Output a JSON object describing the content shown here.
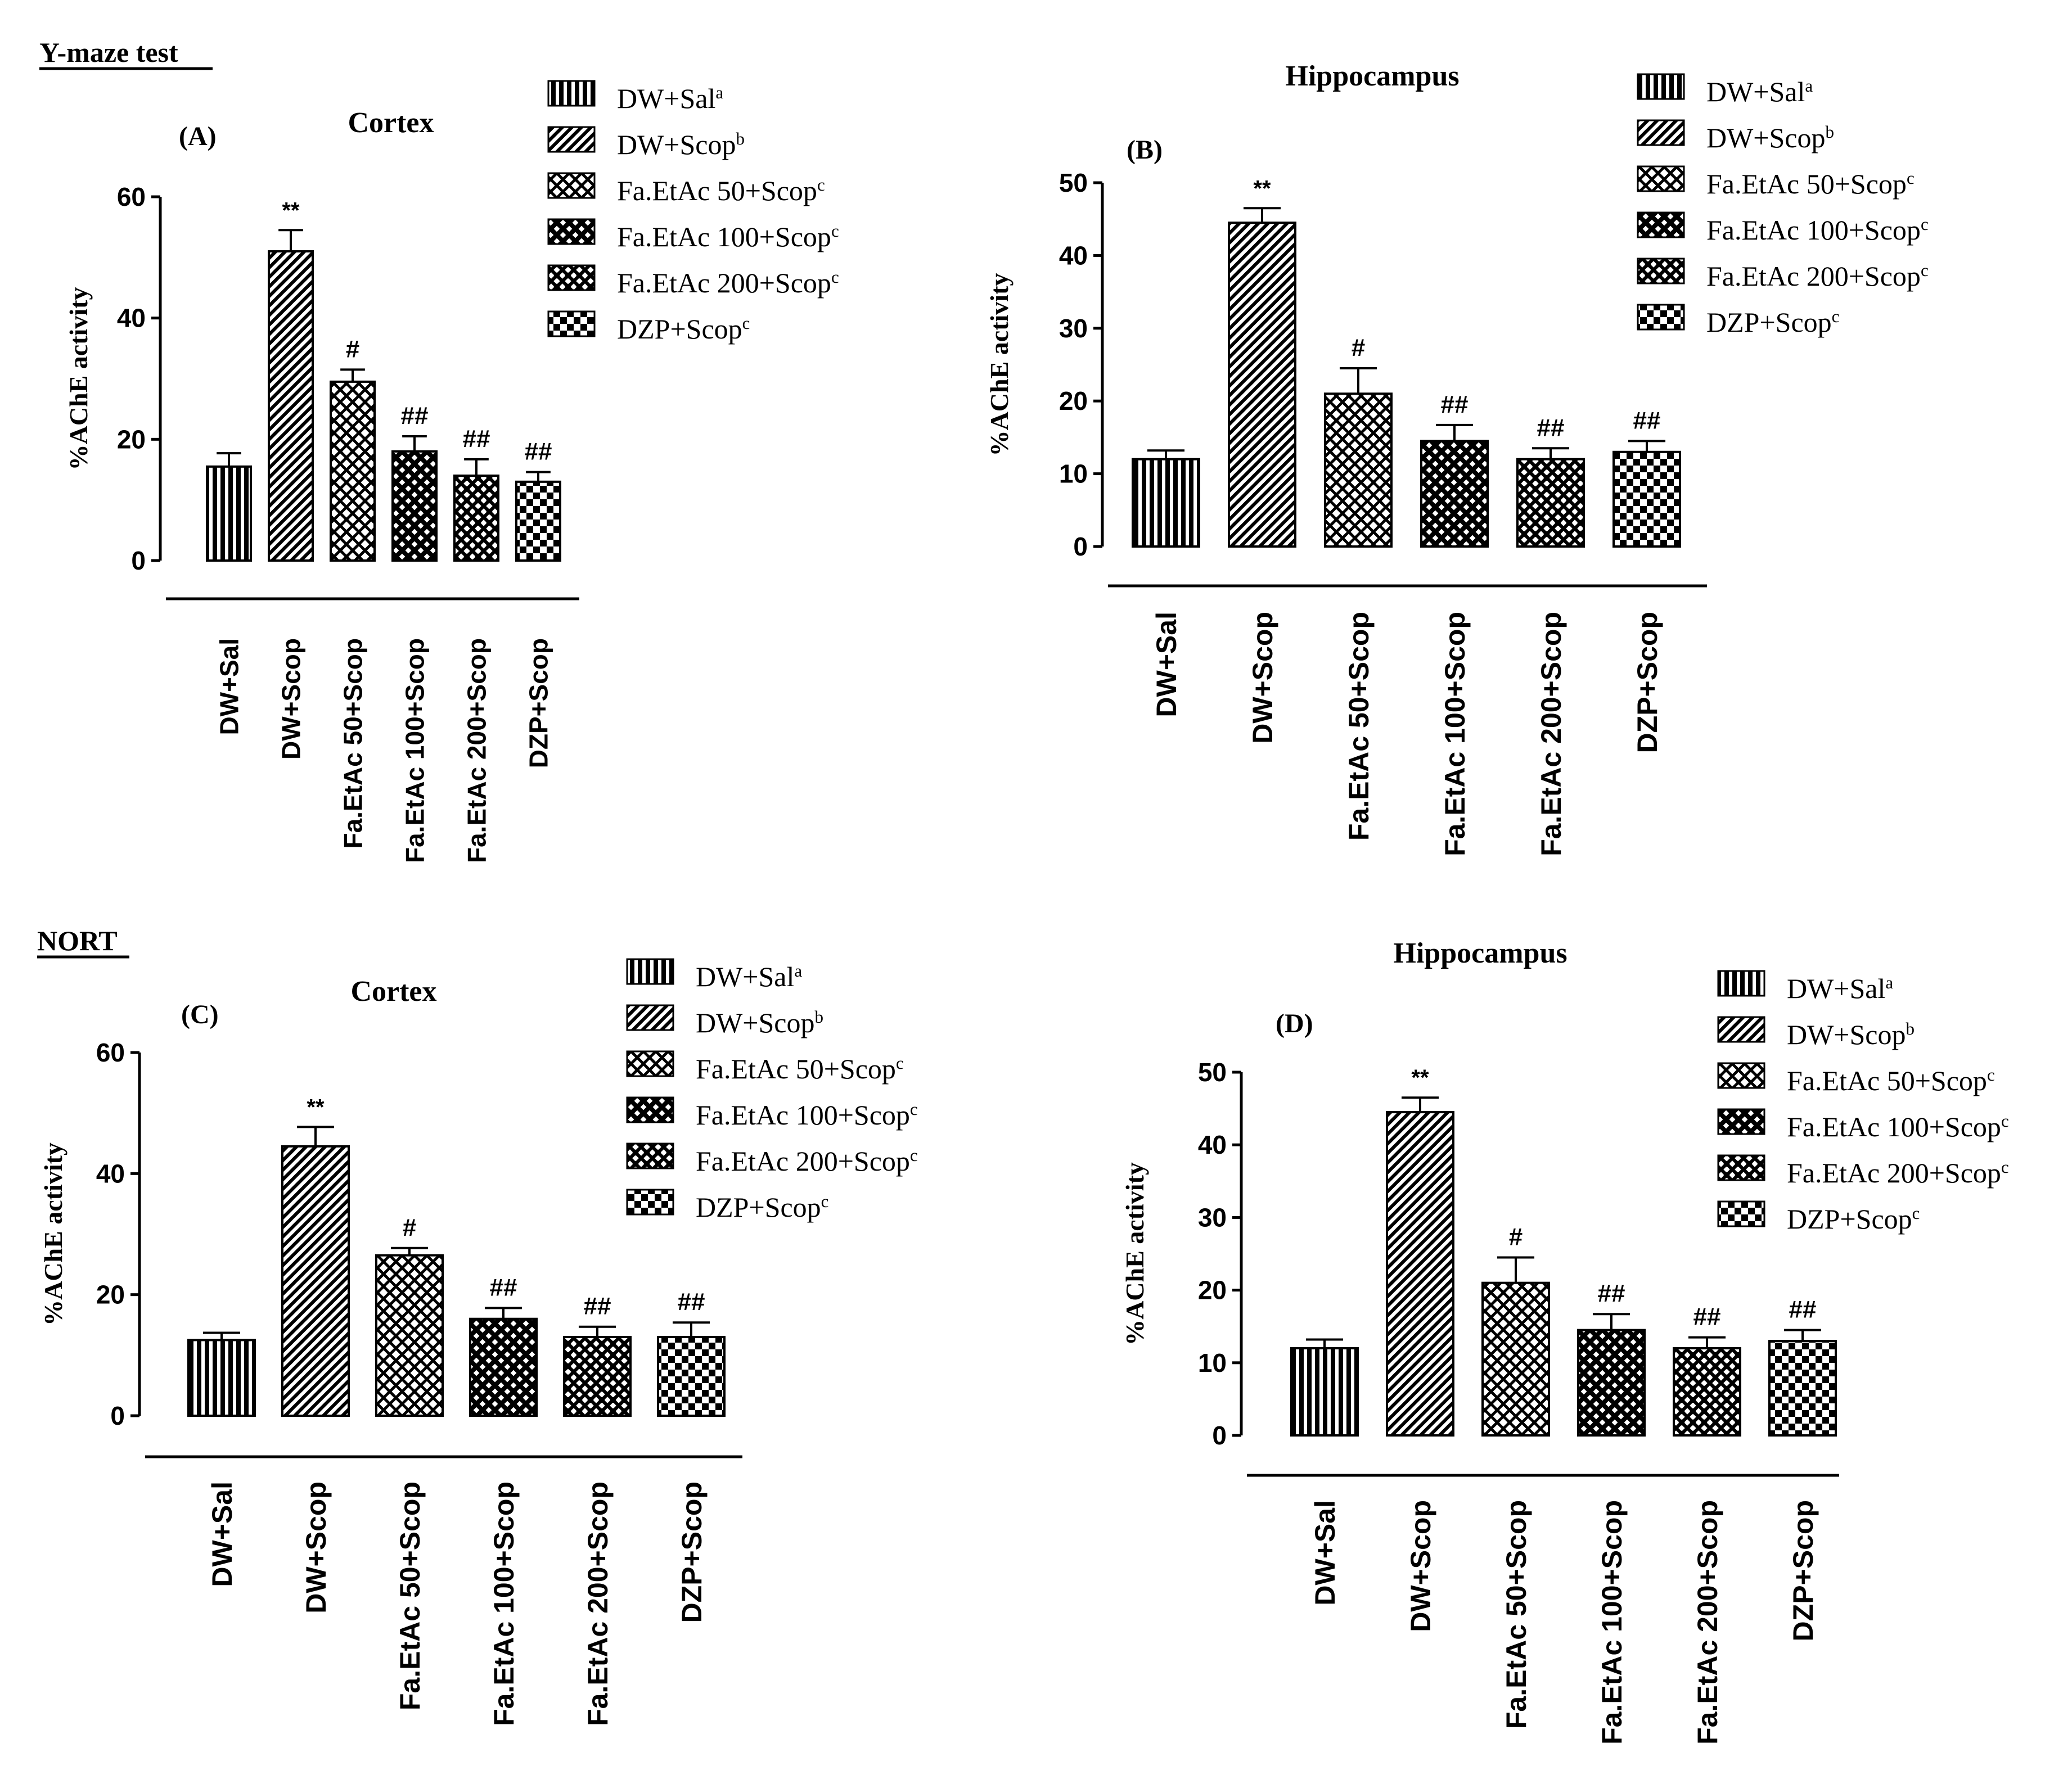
{
  "section_labels": {
    "ymaze": "Y-maze test",
    "nort": "NORT"
  },
  "colors": {
    "ink": "#000000",
    "bar_fill": "#ffffff",
    "background": "#ffffff"
  },
  "chart_data": [
    {
      "type": "bar",
      "panel": "(A)",
      "title": "Cortex",
      "ylabel": "%AChE activity",
      "xlabel": "",
      "ylim": [
        0,
        60
      ],
      "yticks": [
        0,
        20,
        40,
        60
      ],
      "categories": [
        "DW+Sal",
        "DW+Scop",
        "Fa.EtAc 50+Scop",
        "Fa.EtAc 100+Scop",
        "Fa.EtAc 200+Scop",
        "DZP+Scop"
      ],
      "values": [
        15.5,
        51,
        29.5,
        18,
        14,
        13
      ],
      "errors": [
        2.2,
        3.5,
        2.0,
        2.5,
        2.7,
        1.6
      ],
      "annotations": [
        "",
        "**",
        "#",
        "##",
        "##",
        "##"
      ],
      "legend": [
        {
          "label": "DW+Sal",
          "sup": "a"
        },
        {
          "label": "DW+Scop",
          "sup": "b"
        },
        {
          "label": "Fa.EtAc 50+Scop",
          "sup": "c"
        },
        {
          "label": "Fa.EtAc 100+Scop",
          "sup": "c"
        },
        {
          "label": "Fa.EtAc 200+Scop",
          "sup": "c"
        },
        {
          "label": "DZP+Scop",
          "sup": "c"
        }
      ],
      "legend_position": "top-right"
    },
    {
      "type": "bar",
      "panel": "(B)",
      "title": "Hippocampus",
      "ylabel": "%AChE activity",
      "xlabel": "",
      "ylim": [
        0,
        50
      ],
      "yticks": [
        0,
        10,
        20,
        30,
        40,
        50
      ],
      "categories": [
        "DW+Sal",
        "DW+Scop",
        "Fa.EtAc 50+Scop",
        "Fa.EtAc 100+Scop",
        "Fa.EtAc 200+Scop",
        "DZP+Scop"
      ],
      "values": [
        12,
        44.5,
        21,
        14.5,
        12,
        13
      ],
      "errors": [
        1.2,
        2.0,
        3.5,
        2.2,
        1.5,
        1.5
      ],
      "annotations": [
        "",
        "**",
        "#",
        "##",
        "##",
        "##"
      ],
      "legend": [
        {
          "label": "DW+Sal",
          "sup": "a"
        },
        {
          "label": "DW+Scop",
          "sup": "b"
        },
        {
          "label": "Fa.EtAc 50+Scop",
          "sup": "c"
        },
        {
          "label": "Fa.EtAc 100+Scop",
          "sup": "c"
        },
        {
          "label": "Fa.EtAc 200+Scop",
          "sup": "c"
        },
        {
          "label": "DZP+Scop",
          "sup": "c"
        }
      ],
      "legend_position": "top-right"
    },
    {
      "type": "bar",
      "panel": "(C)",
      "title": "Cortex",
      "ylabel": "%AChE activity",
      "xlabel": "",
      "ylim": [
        0,
        60
      ],
      "yticks": [
        0,
        20,
        40,
        60
      ],
      "categories": [
        "DW+Sal",
        "DW+Scop",
        "Fa.EtAc 50+Scop",
        "Fa.EtAc 100+Scop",
        "Fa.EtAc 200+Scop",
        "DZP+Scop"
      ],
      "values": [
        12.5,
        44.5,
        26.5,
        16,
        13,
        13
      ],
      "errors": [
        1.2,
        3.2,
        1.2,
        1.8,
        1.7,
        2.4
      ],
      "annotations": [
        "",
        "**",
        "#",
        "##",
        "##",
        "##"
      ],
      "legend": [
        {
          "label": "DW+Sal",
          "sup": "a"
        },
        {
          "label": "DW+Scop",
          "sup": "b"
        },
        {
          "label": "Fa.EtAc 50+Scop",
          "sup": "c"
        },
        {
          "label": "Fa.EtAc 100+Scop",
          "sup": "c"
        },
        {
          "label": "Fa.EtAc 200+Scop",
          "sup": "c"
        },
        {
          "label": "DZP+Scop",
          "sup": "c"
        }
      ],
      "legend_position": "top-right"
    },
    {
      "type": "bar",
      "panel": "(D)",
      "title": "Hippocampus",
      "ylabel": "%AChE activity",
      "xlabel": "",
      "ylim": [
        0,
        50
      ],
      "yticks": [
        0,
        10,
        20,
        30,
        40,
        50
      ],
      "categories": [
        "DW+Sal",
        "DW+Scop",
        "Fa.EtAc 50+Scop",
        "Fa.EtAc 100+Scop",
        "Fa.EtAc 200+Scop",
        "DZP+Scop"
      ],
      "values": [
        12,
        44.5,
        21,
        14.5,
        12,
        13
      ],
      "errors": [
        1.2,
        2.0,
        3.5,
        2.2,
        1.5,
        1.5
      ],
      "annotations": [
        "",
        "**",
        "#",
        "##",
        "##",
        "##"
      ],
      "legend": [
        {
          "label": "DW+Sal",
          "sup": "a"
        },
        {
          "label": "DW+Scop",
          "sup": "b"
        },
        {
          "label": "Fa.EtAc 50+Scop",
          "sup": "c"
        },
        {
          "label": "Fa.EtAc 100+Scop",
          "sup": "c"
        },
        {
          "label": "Fa.EtAc 200+Scop",
          "sup": "c"
        },
        {
          "label": "DZP+Scop",
          "sup": "c"
        }
      ],
      "legend_position": "top-right"
    }
  ]
}
